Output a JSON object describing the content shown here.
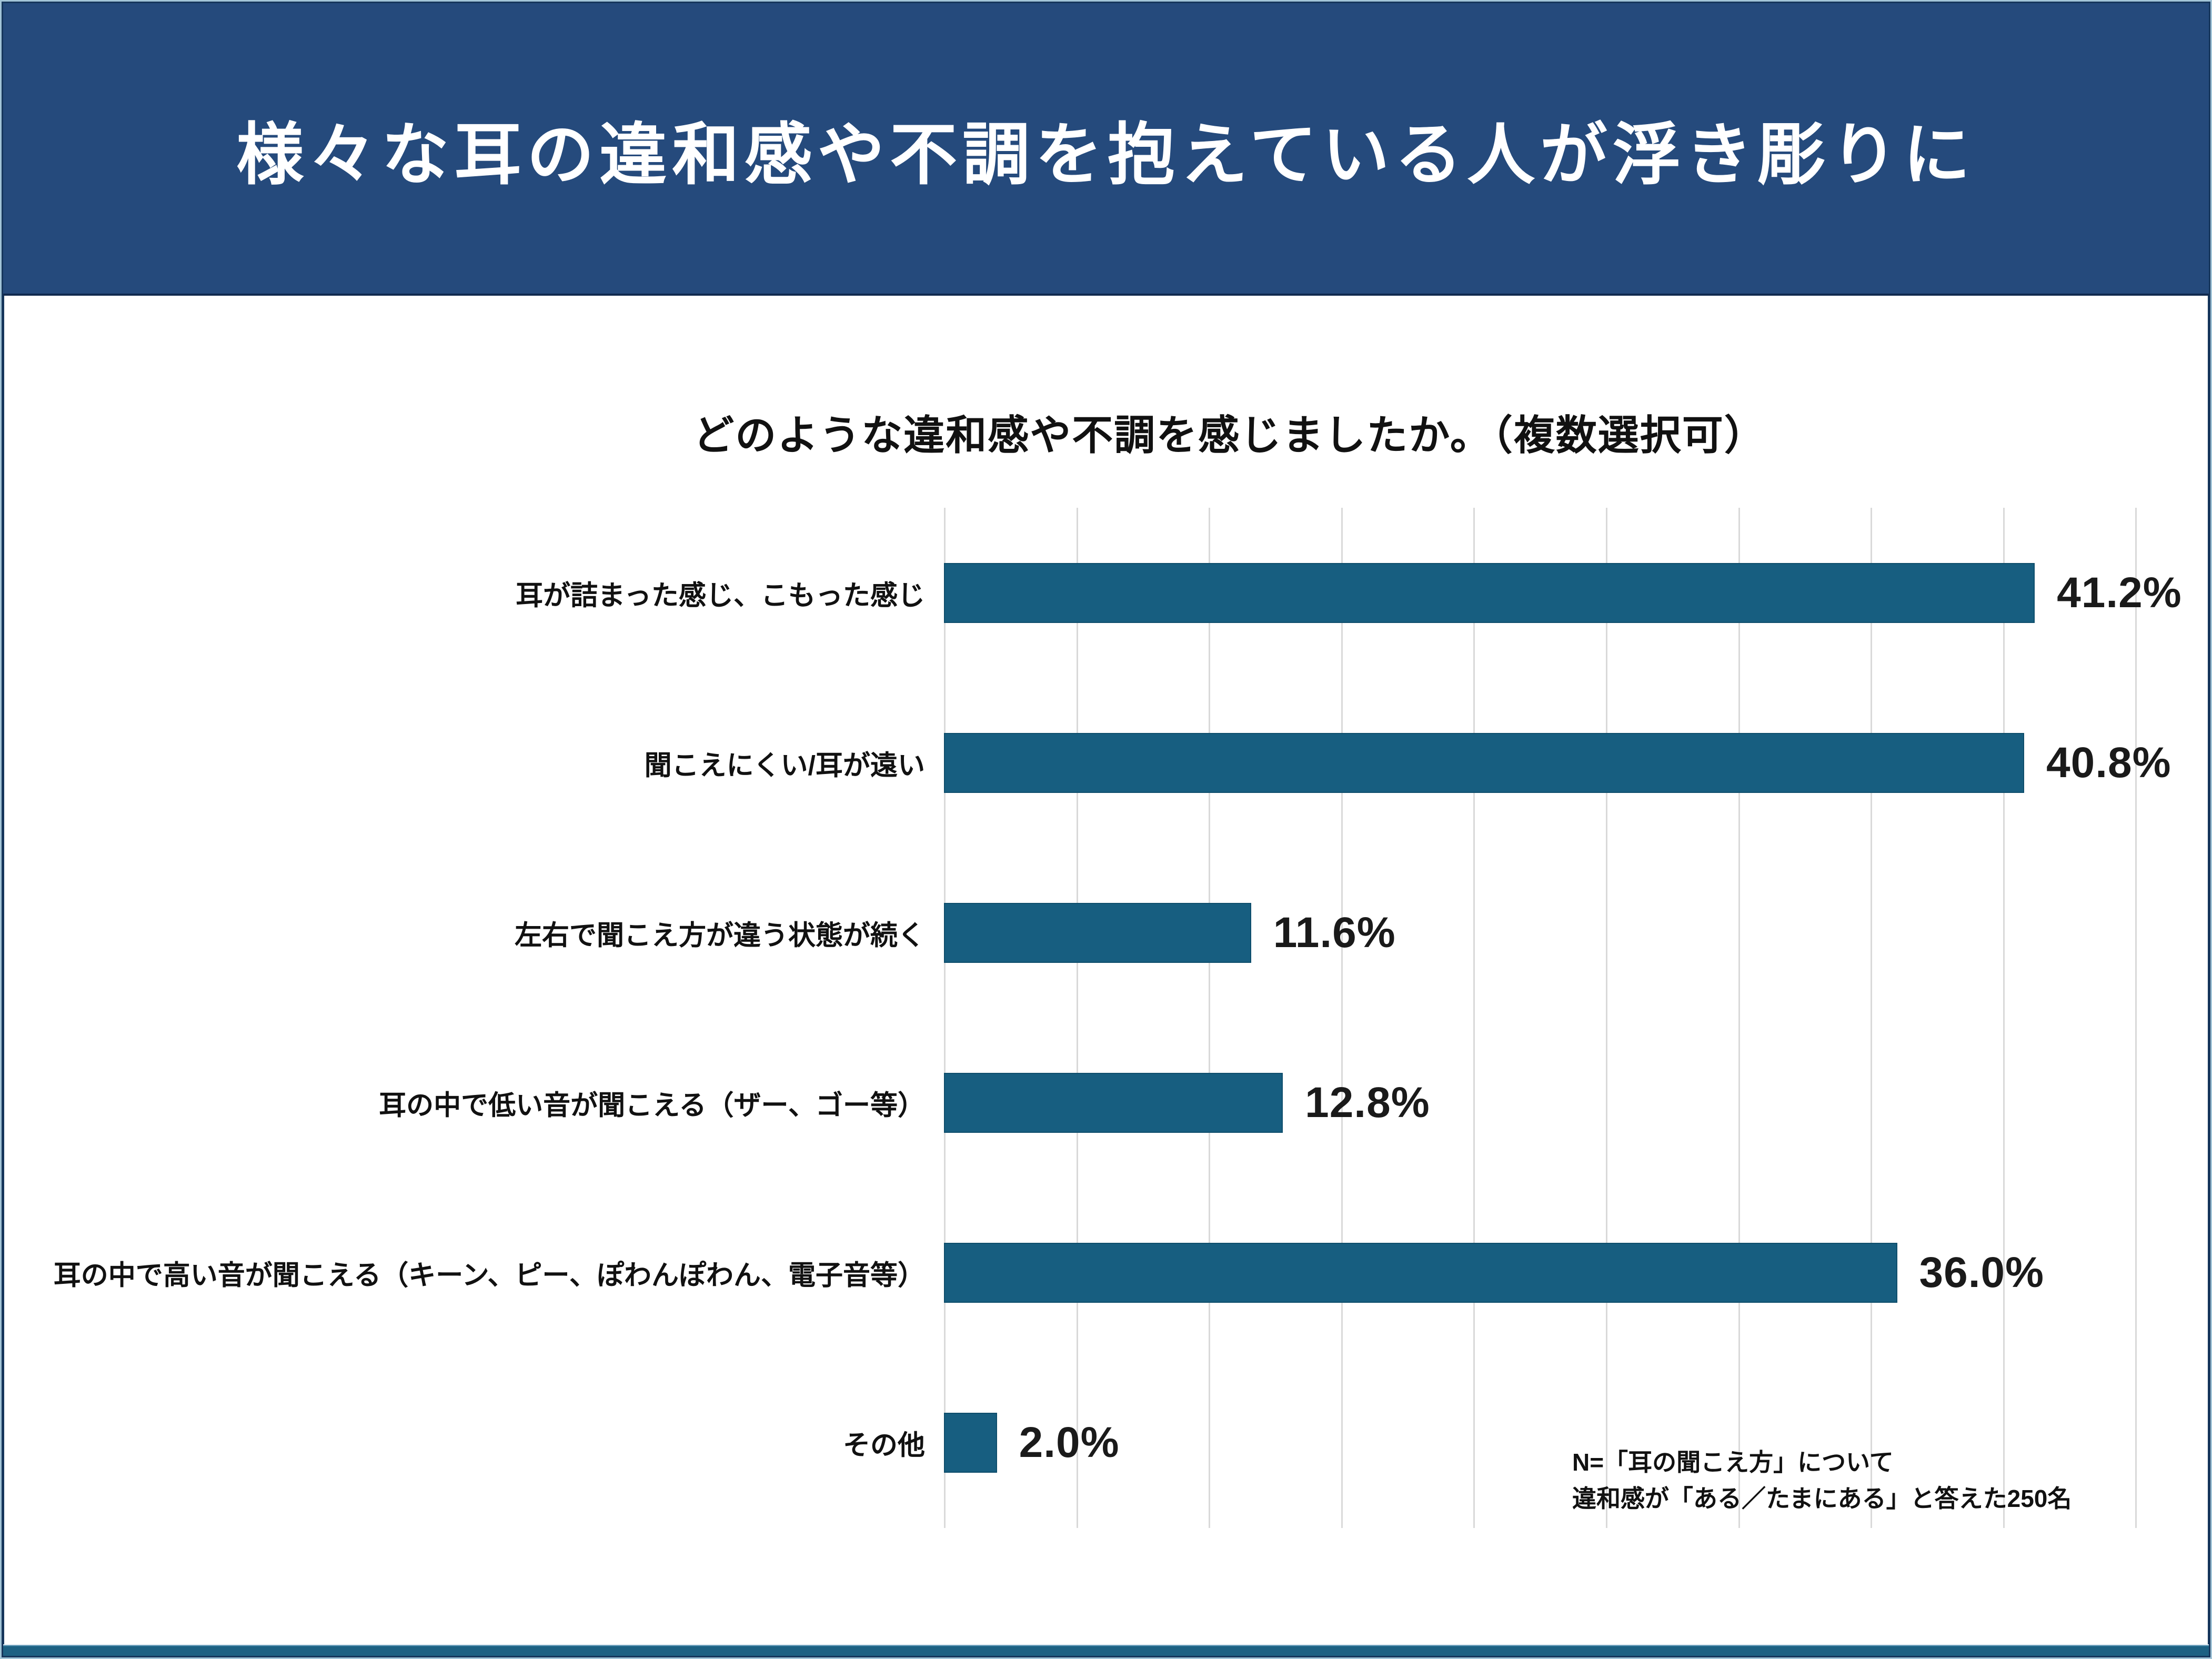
{
  "header": {
    "title": "様々な耳の違和感や不調を抱えている人が浮き彫りに",
    "background": "#254a7c",
    "text_color": "#ffffff"
  },
  "chart": {
    "question": "どのような違和感や不調を感じましたか。（複数選択可）",
    "note_line1": "N=「耳の聞こえ方」について",
    "note_line2": "違和感が「ある／たまにある」と答えた250名"
  },
  "chart_data": {
    "type": "bar",
    "orientation": "horizontal",
    "title": "どのような違和感や不調を感じましたか。（複数選択可）",
    "categories": [
      "耳が詰まった感じ、こもった感じ",
      "聞こえにくい/耳が遠い",
      "左右で聞こえ方が違う状態が続く",
      "耳の中で低い音が聞こえる（ザー、ゴー等）",
      "耳の中で高い音が聞こえる（キーン、ピー、ぽわんぽわん、電子音等）",
      "その他"
    ],
    "values": [
      41.2,
      40.8,
      11.6,
      12.8,
      36.0,
      2.0
    ],
    "value_labels": [
      "41.2%",
      "40.8%",
      "11.6%",
      "12.8%",
      "36.0%",
      "2.0%"
    ],
    "xlabel": "",
    "ylabel": "",
    "xlim": [
      0,
      45
    ],
    "gridline_step": 5,
    "grid": true,
    "legend": false,
    "bar_color": "#175e80",
    "gridline_color": "#d9d9d9",
    "sample_note": "N=「耳の聞こえ方」について 違和感が「ある／たまにある」と答えた250名"
  }
}
